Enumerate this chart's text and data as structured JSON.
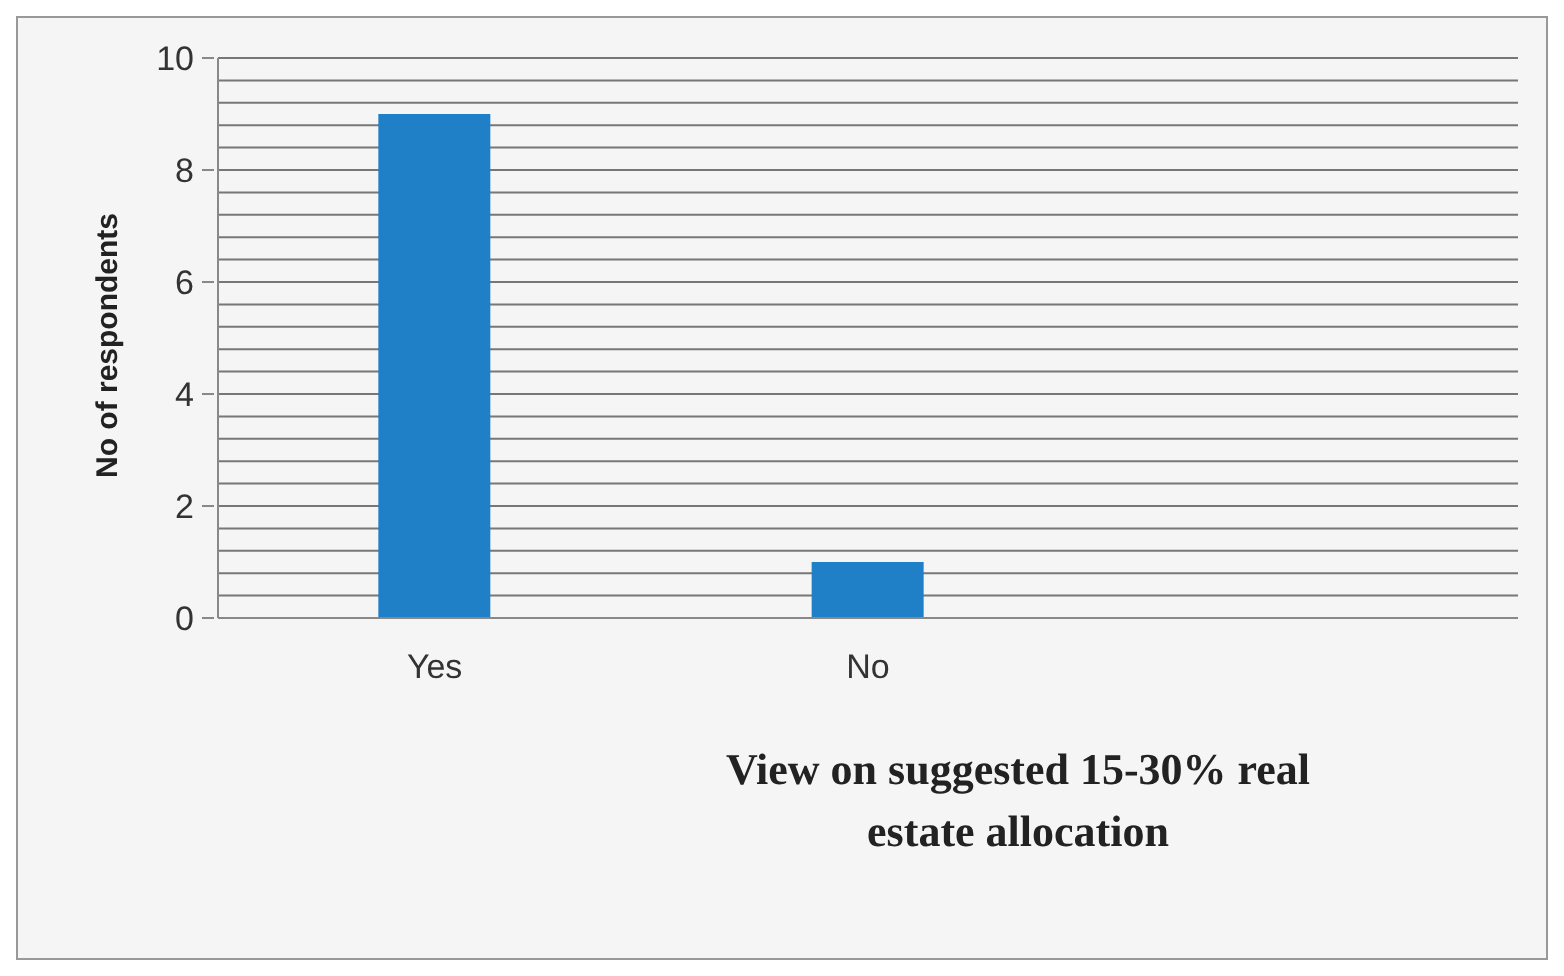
{
  "chart_data": {
    "type": "bar",
    "xlabel": "View on suggested 15-30%  real estate allocation",
    "ylabel": "No of respondents",
    "categories": [
      "Yes",
      "No",
      null
    ],
    "values": [
      9,
      1,
      null
    ],
    "color": "#1f80c8",
    "ylim": [
      0,
      10
    ],
    "yticks": [
      0,
      {
        "value": 0.4,
        "label": null
      },
      {
        "value": 0.8,
        "label": null
      },
      {
        "value": 1.2,
        "label": null
      },
      {
        "value": 1.6,
        "label": null
      },
      2,
      {
        "value": 2.4,
        "label": null
      },
      {
        "value": 2.8,
        "label": null
      },
      {
        "value": 3.2,
        "label": null
      },
      {
        "value": 3.6,
        "label": null
      },
      4,
      {
        "value": 4.4,
        "label": null
      },
      {
        "value": 4.8,
        "label": null
      },
      {
        "value": 5.2,
        "label": null
      },
      {
        "value": 5.6,
        "label": null
      },
      6,
      {
        "value": 6.4,
        "label": null
      },
      {
        "value": 6.8,
        "label": null
      },
      {
        "value": 7.2,
        "label": null
      },
      {
        "value": 7.6,
        "label": null
      },
      8,
      {
        "value": 8.4,
        "label": null
      },
      {
        "value": 8.8,
        "label": null
      },
      {
        "value": 9.2,
        "label": null
      },
      {
        "value": 9.6,
        "label": null
      },
      10
    ],
    "grid": "y",
    "legend": false
  }
}
